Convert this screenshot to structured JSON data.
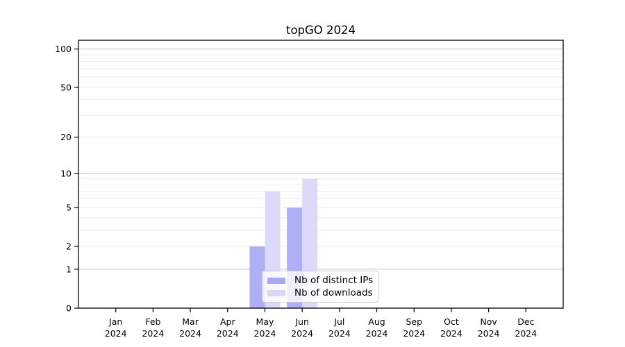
{
  "figure": {
    "background": "#ffffff"
  },
  "colors": {
    "axis": "#000000",
    "grid_major": "#c8c8c8",
    "grid_minor": "#ececec",
    "legend_border": "#cccccc",
    "legend_background": "rgba(255,255,255,0.8)"
  },
  "chart_data": {
    "type": "bar",
    "title": "topGO 2024",
    "categories": [
      "Jan",
      "Feb",
      "Mar",
      "Apr",
      "May",
      "Jun",
      "Jul",
      "Aug",
      "Sep",
      "Oct",
      "Nov",
      "Dec"
    ],
    "category_year": "2024",
    "series": [
      {
        "name": "Nb of distinct IPs",
        "color": "#a8a8f4",
        "values": [
          0,
          0,
          0,
          0,
          2,
          5,
          0,
          0,
          0,
          0,
          0,
          0
        ]
      },
      {
        "name": "Nb of downloads",
        "color": "#d8d8f8",
        "values": [
          0,
          0,
          0,
          0,
          7,
          9,
          0,
          0,
          0,
          0,
          0,
          0
        ]
      }
    ],
    "yscale": "log1p",
    "ylim": [
      0,
      117
    ],
    "yticks": [
      0,
      1,
      2,
      5,
      10,
      20,
      50,
      100
    ],
    "gridlines_major": [
      1,
      10,
      100
    ],
    "gridlines_minor": [
      2,
      3,
      4,
      5,
      6,
      7,
      8,
      9,
      20,
      30,
      40,
      50,
      60,
      70,
      80,
      90
    ],
    "legend_position": "inside-lower-center"
  }
}
